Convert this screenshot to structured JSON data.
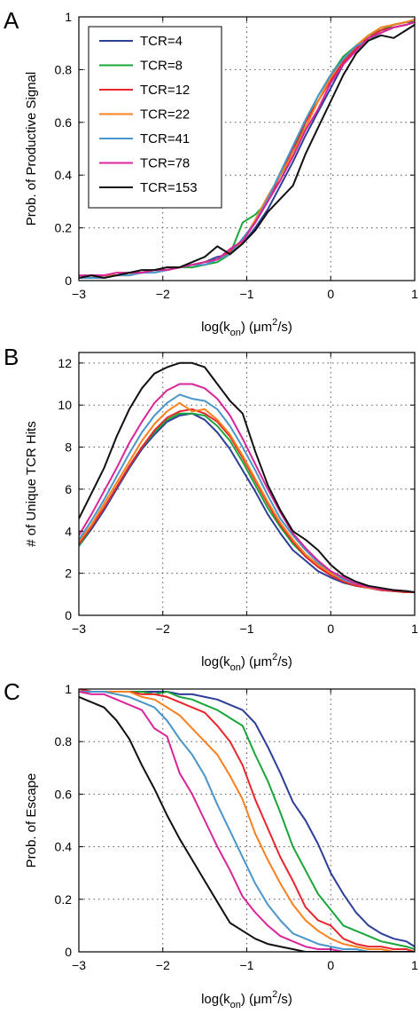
{
  "colors": {
    "TCR=4": "#2e3f98",
    "TCR=8": "#1aa63a",
    "TCR=12": "#e8262b",
    "TCR=22": "#f7801f",
    "TCR=41": "#4a95c9",
    "TCR=78": "#d9259a",
    "TCR=153": "#111111"
  },
  "chart_data": [
    {
      "type": "line",
      "panel": "A",
      "title": "",
      "xlabel": "log(k_on) (μm²/s)",
      "ylabel": "Prob. of Productive Signal",
      "xlim": [
        -3,
        1
      ],
      "ylim": [
        0,
        1
      ],
      "xticks": [
        -3,
        -2,
        -1,
        0,
        1
      ],
      "yticks": [
        0,
        0.2,
        0.4,
        0.6,
        0.8,
        1
      ],
      "xtick_labels": [
        "−3",
        "−2",
        "−1",
        "0",
        "1"
      ],
      "ytick_labels": [
        "0",
        "0.2",
        "0.4",
        "0.6",
        "0.8",
        "1"
      ],
      "grid": true,
      "legend": "top-left",
      "x": [
        -3.0,
        -2.85,
        -2.7,
        -2.55,
        -2.4,
        -2.25,
        -2.1,
        -1.95,
        -1.8,
        -1.65,
        -1.5,
        -1.35,
        -1.2,
        -1.05,
        -0.9,
        -0.75,
        -0.6,
        -0.45,
        -0.3,
        -0.15,
        0.0,
        0.15,
        0.3,
        0.45,
        0.6,
        0.75,
        0.9,
        1.0
      ],
      "series": [
        {
          "name": "TCR=4",
          "values": [
            0.01,
            0.02,
            0.02,
            0.02,
            0.03,
            0.03,
            0.04,
            0.04,
            0.05,
            0.06,
            0.07,
            0.09,
            0.1,
            0.14,
            0.2,
            0.27,
            0.36,
            0.45,
            0.55,
            0.64,
            0.73,
            0.82,
            0.88,
            0.93,
            0.95,
            0.97,
            0.98,
            0.98
          ]
        },
        {
          "name": "TCR=8",
          "values": [
            0.01,
            0.01,
            0.02,
            0.02,
            0.03,
            0.03,
            0.04,
            0.04,
            0.05,
            0.05,
            0.06,
            0.07,
            0.1,
            0.22,
            0.25,
            0.3,
            0.38,
            0.48,
            0.6,
            0.7,
            0.78,
            0.85,
            0.89,
            0.93,
            0.95,
            0.97,
            0.98,
            0.99
          ]
        },
        {
          "name": "TCR=12",
          "values": [
            0.01,
            0.02,
            0.02,
            0.02,
            0.03,
            0.03,
            0.04,
            0.05,
            0.05,
            0.06,
            0.07,
            0.08,
            0.11,
            0.15,
            0.22,
            0.3,
            0.4,
            0.5,
            0.6,
            0.68,
            0.76,
            0.83,
            0.88,
            0.92,
            0.95,
            0.96,
            0.97,
            0.98
          ]
        },
        {
          "name": "TCR=22",
          "values": [
            0.01,
            0.01,
            0.02,
            0.02,
            0.02,
            0.03,
            0.04,
            0.04,
            0.05,
            0.06,
            0.07,
            0.08,
            0.1,
            0.15,
            0.23,
            0.32,
            0.4,
            0.48,
            0.58,
            0.68,
            0.77,
            0.84,
            0.89,
            0.93,
            0.96,
            0.97,
            0.98,
            0.99
          ]
        },
        {
          "name": "TCR=41",
          "values": [
            0.01,
            0.01,
            0.01,
            0.02,
            0.02,
            0.03,
            0.03,
            0.04,
            0.05,
            0.06,
            0.06,
            0.08,
            0.1,
            0.16,
            0.22,
            0.31,
            0.41,
            0.51,
            0.61,
            0.7,
            0.78,
            0.84,
            0.89,
            0.91,
            0.94,
            0.96,
            0.97,
            0.98
          ]
        },
        {
          "name": "TCR=78",
          "values": [
            0.02,
            0.02,
            0.02,
            0.03,
            0.03,
            0.03,
            0.04,
            0.04,
            0.05,
            0.06,
            0.07,
            0.08,
            0.12,
            0.15,
            0.22,
            0.3,
            0.38,
            0.47,
            0.57,
            0.65,
            0.75,
            0.82,
            0.87,
            0.92,
            0.94,
            0.96,
            0.97,
            0.98
          ]
        },
        {
          "name": "TCR=153",
          "values": [
            0.01,
            0.02,
            0.01,
            0.02,
            0.03,
            0.04,
            0.04,
            0.05,
            0.05,
            0.07,
            0.09,
            0.13,
            0.1,
            0.14,
            0.19,
            0.26,
            0.31,
            0.36,
            0.48,
            0.58,
            0.68,
            0.78,
            0.86,
            0.91,
            0.93,
            0.92,
            0.95,
            0.97
          ]
        }
      ]
    },
    {
      "type": "line",
      "panel": "B",
      "title": "",
      "xlabel": "log(k_on) (μm²/s)",
      "ylabel": "# of Unique TCR Hits",
      "xlim": [
        -3,
        1
      ],
      "ylim": [
        0,
        12.5
      ],
      "xticks": [
        -3,
        -2,
        -1,
        0,
        1
      ],
      "yticks": [
        0,
        2,
        4,
        6,
        8,
        10,
        12
      ],
      "xtick_labels": [
        "−3",
        "−2",
        "−1",
        "0",
        "1"
      ],
      "ytick_labels": [
        "0",
        "2",
        "4",
        "6",
        "8",
        "10",
        "12"
      ],
      "grid": true,
      "x": [
        -3.0,
        -2.85,
        -2.7,
        -2.55,
        -2.4,
        -2.25,
        -2.1,
        -1.95,
        -1.8,
        -1.65,
        -1.5,
        -1.35,
        -1.2,
        -1.05,
        -0.9,
        -0.75,
        -0.6,
        -0.45,
        -0.3,
        -0.15,
        0.0,
        0.15,
        0.3,
        0.45,
        0.6,
        0.75,
        0.9,
        1.0
      ],
      "series": [
        {
          "name": "TCR=4",
          "values": [
            3.3,
            4.1,
            5.0,
            6.0,
            7.0,
            7.9,
            8.6,
            9.2,
            9.5,
            9.6,
            9.3,
            8.7,
            7.9,
            6.9,
            5.9,
            4.8,
            3.9,
            3.1,
            2.6,
            2.1,
            1.8,
            1.55,
            1.4,
            1.3,
            1.2,
            1.15,
            1.1,
            1.1
          ]
        },
        {
          "name": "TCR=8",
          "values": [
            3.3,
            4.2,
            5.1,
            6.1,
            7.1,
            8.0,
            8.7,
            9.3,
            9.6,
            9.6,
            9.5,
            9.0,
            8.3,
            7.3,
            6.2,
            5.1,
            4.2,
            3.4,
            2.8,
            2.3,
            1.9,
            1.6,
            1.4,
            1.3,
            1.2,
            1.15,
            1.1,
            1.1
          ]
        },
        {
          "name": "TCR=12",
          "values": [
            3.4,
            4.2,
            5.1,
            6.1,
            7.1,
            8.0,
            8.8,
            9.4,
            9.7,
            9.8,
            9.6,
            9.2,
            8.5,
            7.5,
            6.4,
            5.3,
            4.3,
            3.5,
            2.8,
            2.3,
            1.9,
            1.6,
            1.4,
            1.3,
            1.2,
            1.15,
            1.1,
            1.1
          ]
        },
        {
          "name": "TCR=22",
          "values": [
            3.5,
            4.3,
            5.3,
            6.3,
            7.3,
            8.3,
            9.1,
            9.7,
            10.1,
            9.7,
            9.8,
            9.3,
            8.6,
            7.6,
            6.5,
            5.4,
            4.4,
            3.6,
            2.9,
            2.4,
            2.0,
            1.7,
            1.5,
            1.3,
            1.25,
            1.2,
            1.15,
            1.1
          ]
        },
        {
          "name": "TCR=41",
          "values": [
            3.6,
            4.5,
            5.5,
            6.6,
            7.7,
            8.7,
            9.5,
            10.1,
            10.5,
            10.3,
            10.2,
            9.8,
            9.0,
            8.0,
            6.9,
            5.7,
            4.6,
            3.8,
            3.1,
            2.5,
            2.1,
            1.7,
            1.5,
            1.35,
            1.25,
            1.2,
            1.15,
            1.1
          ]
        },
        {
          "name": "TCR=78",
          "values": [
            3.8,
            4.8,
            5.9,
            7.0,
            8.2,
            9.2,
            10.1,
            10.7,
            11.0,
            11.0,
            10.8,
            10.3,
            9.5,
            8.4,
            7.2,
            6.0,
            4.9,
            3.9,
            3.2,
            2.6,
            2.1,
            1.8,
            1.5,
            1.35,
            1.25,
            1.2,
            1.15,
            1.1
          ]
        },
        {
          "name": "TCR=153",
          "values": [
            4.6,
            5.8,
            7.0,
            8.5,
            9.8,
            10.8,
            11.5,
            11.8,
            12.0,
            12.0,
            11.8,
            11.0,
            10.2,
            9.6,
            7.8,
            6.2,
            5.0,
            4.0,
            3.6,
            3.1,
            2.4,
            1.9,
            1.6,
            1.4,
            1.3,
            1.2,
            1.15,
            1.1
          ]
        }
      ]
    },
    {
      "type": "line",
      "panel": "C",
      "title": "",
      "xlabel": "log(k_on) (μm²/s)",
      "ylabel": "Prob. of Escape",
      "xlim": [
        -3,
        1
      ],
      "ylim": [
        0,
        1
      ],
      "xticks": [
        -3,
        -2,
        -1,
        0,
        1
      ],
      "yticks": [
        0,
        0.2,
        0.4,
        0.6,
        0.8,
        1
      ],
      "xtick_labels": [
        "−3",
        "−2",
        "−1",
        "0",
        "1"
      ],
      "ytick_labels": [
        "0",
        "0.2",
        "0.4",
        "0.6",
        "0.8",
        "1"
      ],
      "grid": true,
      "x": [
        -3.0,
        -2.85,
        -2.7,
        -2.55,
        -2.4,
        -2.25,
        -2.1,
        -1.95,
        -1.8,
        -1.65,
        -1.5,
        -1.35,
        -1.2,
        -1.05,
        -0.9,
        -0.75,
        -0.6,
        -0.45,
        -0.3,
        -0.15,
        0.0,
        0.15,
        0.3,
        0.45,
        0.6,
        0.75,
        0.9,
        1.0
      ],
      "series": [
        {
          "name": "TCR=4",
          "values": [
            1.0,
            0.99,
            0.99,
            0.99,
            0.99,
            0.99,
            0.99,
            0.99,
            0.98,
            0.98,
            0.97,
            0.96,
            0.94,
            0.92,
            0.87,
            0.78,
            0.68,
            0.57,
            0.5,
            0.41,
            0.3,
            0.22,
            0.15,
            0.1,
            0.07,
            0.05,
            0.04,
            0.02
          ]
        },
        {
          "name": "TCR=8",
          "values": [
            1.0,
            0.99,
            0.99,
            0.99,
            0.99,
            0.99,
            0.98,
            0.99,
            0.97,
            0.96,
            0.94,
            0.92,
            0.89,
            0.86,
            0.75,
            0.65,
            0.53,
            0.4,
            0.31,
            0.22,
            0.16,
            0.1,
            0.08,
            0.06,
            0.04,
            0.03,
            0.02,
            0.01
          ]
        },
        {
          "name": "TCR=12",
          "values": [
            1.0,
            0.99,
            0.99,
            0.99,
            0.99,
            0.98,
            0.98,
            0.97,
            0.95,
            0.93,
            0.91,
            0.86,
            0.8,
            0.71,
            0.58,
            0.47,
            0.36,
            0.27,
            0.17,
            0.12,
            0.1,
            0.05,
            0.03,
            0.02,
            0.02,
            0.01,
            0.01,
            0.0
          ]
        },
        {
          "name": "TCR=22",
          "values": [
            0.99,
            0.99,
            0.99,
            0.99,
            0.99,
            0.97,
            0.96,
            0.93,
            0.9,
            0.85,
            0.8,
            0.75,
            0.67,
            0.58,
            0.45,
            0.35,
            0.26,
            0.18,
            0.12,
            0.08,
            0.05,
            0.03,
            0.02,
            0.01,
            0.01,
            0.0,
            0.0,
            0.0
          ]
        },
        {
          "name": "TCR=41",
          "values": [
            0.99,
            0.99,
            0.99,
            0.98,
            0.97,
            0.95,
            0.93,
            0.88,
            0.81,
            0.75,
            0.67,
            0.56,
            0.46,
            0.36,
            0.26,
            0.18,
            0.12,
            0.07,
            0.05,
            0.03,
            0.02,
            0.01,
            0.01,
            0.0,
            0.0,
            0.0,
            0.0,
            0.0
          ]
        },
        {
          "name": "TCR=78",
          "values": [
            0.99,
            0.98,
            0.98,
            0.96,
            0.94,
            0.92,
            0.85,
            0.82,
            0.68,
            0.6,
            0.5,
            0.4,
            0.31,
            0.21,
            0.15,
            0.1,
            0.06,
            0.04,
            0.02,
            0.01,
            0.01,
            0.0,
            0.0,
            0.0,
            0.0,
            0.0,
            0.0,
            0.0
          ]
        },
        {
          "name": "TCR=153",
          "values": [
            0.97,
            0.95,
            0.93,
            0.88,
            0.81,
            0.71,
            0.62,
            0.52,
            0.43,
            0.35,
            0.27,
            0.19,
            0.11,
            0.08,
            0.05,
            0.03,
            0.02,
            0.01,
            0.0,
            0.0,
            0.0,
            0.0,
            0.0,
            0.0,
            0.0,
            0.0,
            0.0,
            0.0
          ]
        }
      ]
    }
  ]
}
